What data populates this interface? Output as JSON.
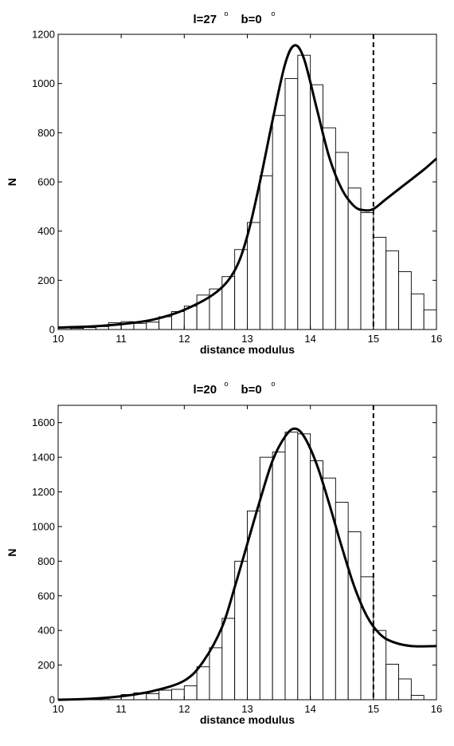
{
  "chart_data": [
    {
      "type": "bar",
      "title": "l=27    b=0",
      "title_parts": {
        "l": "l=27",
        "b": "b=0",
        "deg": "o"
      },
      "xlabel": "distance modulus",
      "ylabel": "N",
      "xlim": [
        10,
        16
      ],
      "ylim": [
        0,
        1200
      ],
      "xticks": [
        "10",
        "11",
        "12",
        "13",
        "14",
        "15",
        "16"
      ],
      "yticks": [
        "0",
        "200",
        "400",
        "600",
        "800",
        "1000",
        "1200"
      ],
      "bin_width": 0.2,
      "bins": {
        "x": [
          10.0,
          10.2,
          10.4,
          10.6,
          10.8,
          11.0,
          11.2,
          11.4,
          11.6,
          11.8,
          12.0,
          12.2,
          12.4,
          12.6,
          12.8,
          13.0,
          13.2,
          13.4,
          13.6,
          13.8,
          14.0,
          14.2,
          14.4,
          14.6,
          14.8,
          15.0,
          15.2,
          15.4,
          15.6,
          15.8
        ],
        "values": [
          10,
          5,
          8,
          12,
          28,
          32,
          25,
          30,
          52,
          73,
          95,
          140,
          165,
          215,
          325,
          435,
          625,
          870,
          1020,
          1115,
          995,
          820,
          720,
          575,
          475,
          375,
          320,
          235,
          145,
          80
        ]
      },
      "model_curve": {
        "x": [
          10,
          10.5,
          11,
          11.5,
          12,
          12.5,
          12.8,
          13,
          13.2,
          13.4,
          13.6,
          13.75,
          13.9,
          14.1,
          14.3,
          14.5,
          14.7,
          14.85,
          15,
          15.2,
          15.5,
          15.8,
          16
        ],
        "y": [
          8,
          12,
          22,
          40,
          80,
          150,
          240,
          380,
          600,
          850,
          1080,
          1155,
          1100,
          900,
          700,
          570,
          500,
          485,
          490,
          530,
          590,
          650,
          695
        ]
      },
      "dashed_line_x": 15.0,
      "legend": "none",
      "grid": false
    },
    {
      "type": "bar",
      "title": "l=20    b=0",
      "title_parts": {
        "l": "l=20",
        "b": "b=0",
        "deg": "o"
      },
      "xlabel": "distance modulus",
      "ylabel": "N",
      "xlim": [
        10,
        16
      ],
      "ylim": [
        0,
        1700
      ],
      "xticks": [
        "10",
        "11",
        "12",
        "13",
        "14",
        "15",
        "16"
      ],
      "yticks": [
        "0",
        "200",
        "400",
        "600",
        "800",
        "1000",
        "1200",
        "1400",
        "1600"
      ],
      "bin_width": 0.2,
      "bins": {
        "x": [
          10.0,
          10.2,
          10.4,
          10.6,
          10.8,
          11.0,
          11.2,
          11.4,
          11.6,
          11.8,
          12.0,
          12.2,
          12.4,
          12.6,
          12.8,
          13.0,
          13.2,
          13.4,
          13.6,
          13.8,
          14.0,
          14.2,
          14.4,
          14.6,
          14.8,
          15.0,
          15.2,
          15.4,
          15.6,
          15.8
        ],
        "values": [
          0,
          0,
          3,
          8,
          15,
          30,
          40,
          35,
          55,
          60,
          80,
          190,
          300,
          470,
          800,
          1090,
          1400,
          1430,
          1545,
          1535,
          1380,
          1280,
          1140,
          970,
          710,
          400,
          205,
          120,
          25,
          0
        ]
      },
      "model_curve": {
        "x": [
          10,
          10.5,
          11,
          11.5,
          12,
          12.3,
          12.6,
          12.8,
          13,
          13.2,
          13.4,
          13.6,
          13.75,
          13.9,
          14.1,
          14.3,
          14.5,
          14.7,
          14.9,
          15.1,
          15.3,
          15.6,
          16
        ],
        "y": [
          0,
          5,
          20,
          50,
          110,
          220,
          420,
          650,
          900,
          1150,
          1380,
          1520,
          1565,
          1520,
          1360,
          1130,
          880,
          650,
          480,
          380,
          335,
          310,
          310
        ]
      },
      "dashed_line_x": 15.0,
      "legend": "none",
      "grid": false
    }
  ]
}
